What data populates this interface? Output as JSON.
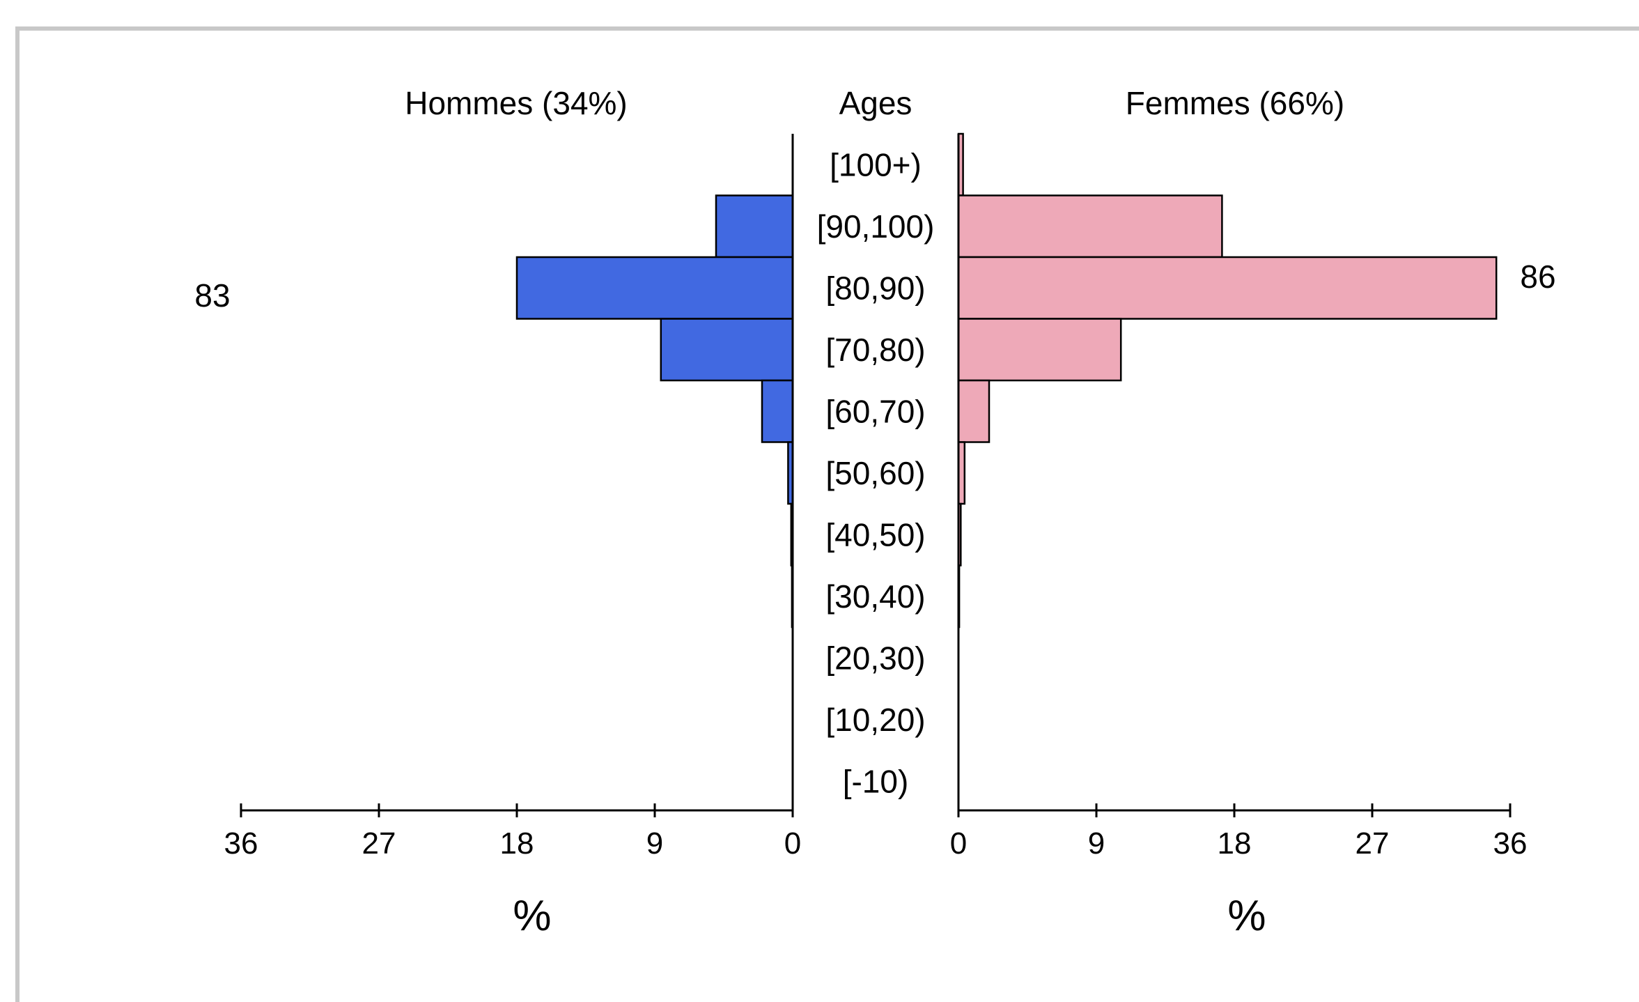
{
  "chart_data": {
    "type": "bar",
    "subtype": "population-pyramid",
    "orientation": "horizontal",
    "header_label": "Ages",
    "categories": [
      "[100+)",
      "[90,100)",
      "[80,90)",
      "[70,80)",
      "[60,70)",
      "[50,60)",
      "[40,50)",
      "[30,40)",
      "[20,30)",
      "[10,20)",
      "[-10)"
    ],
    "series": [
      {
        "name": "Hommes (34%)",
        "side": "left",
        "color": "#4169e1",
        "values": [
          0.0,
          5.0,
          18.0,
          8.6,
          2.0,
          0.3,
          0.1,
          0.05,
          0.0,
          0.0,
          0.0
        ],
        "count_label": "83"
      },
      {
        "name": "Femmes (66%)",
        "side": "right",
        "color": "#eea9b8",
        "values": [
          0.3,
          17.2,
          35.1,
          10.6,
          2.0,
          0.4,
          0.15,
          0.05,
          0.0,
          0.0,
          0.0
        ],
        "count_label": "86"
      }
    ],
    "xlim": [
      0,
      36
    ],
    "xticks": [
      0,
      9,
      18,
      27,
      36
    ],
    "xlabel": "%",
    "grid": false,
    "legend": "none"
  }
}
